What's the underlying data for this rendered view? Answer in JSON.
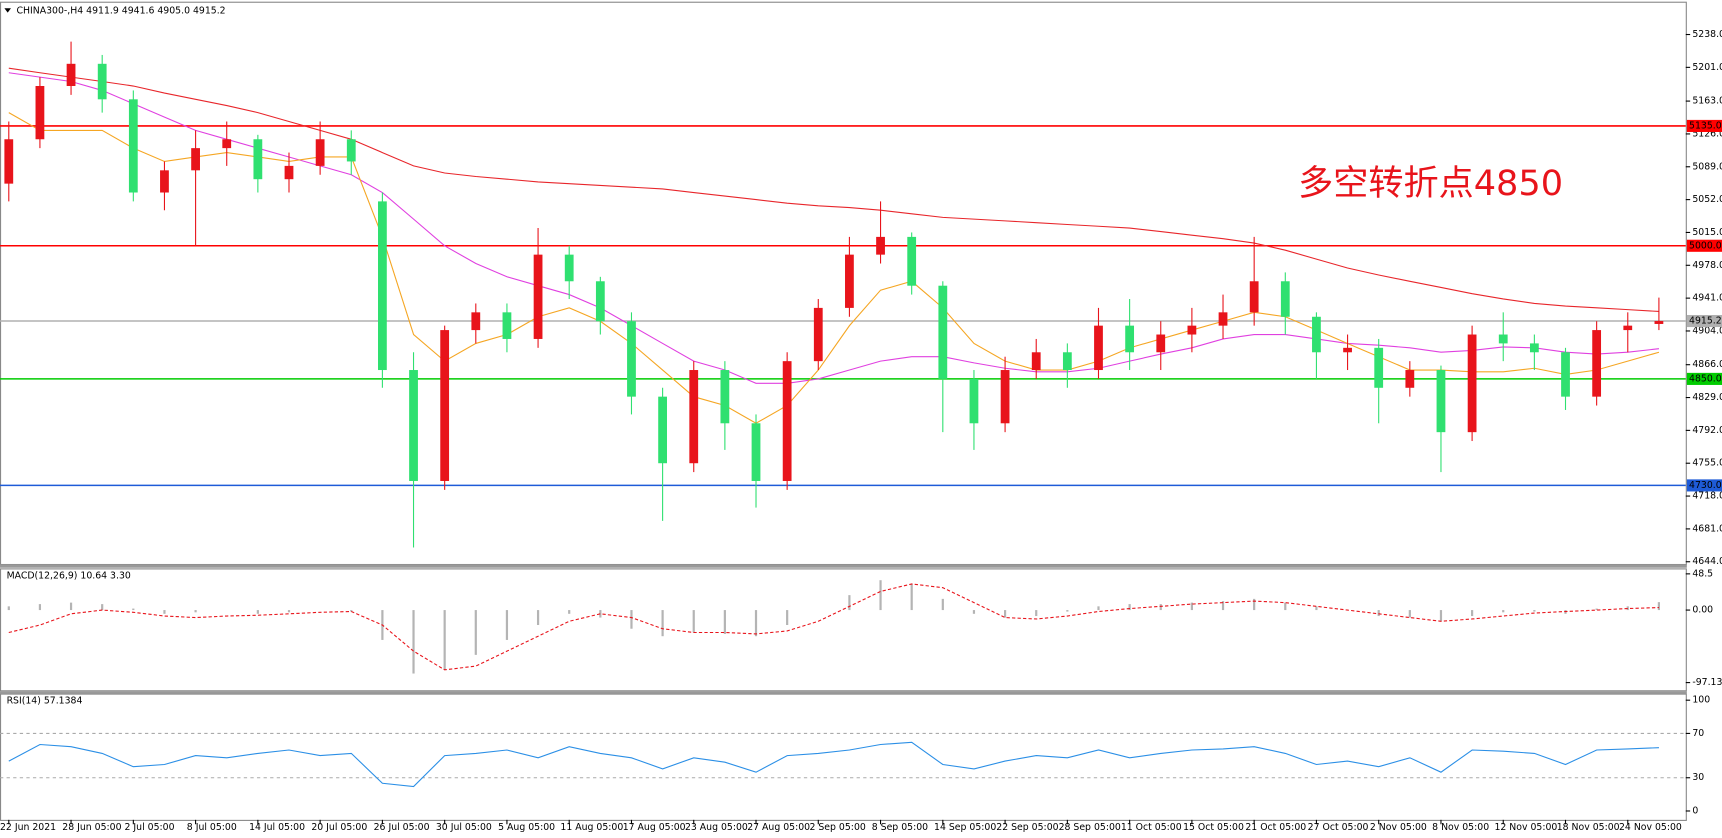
{
  "chart_data": [
    {
      "type": "candlestick",
      "title": "CHINA300-,H4  4911.9 4941.6 4905.0 4915.2",
      "annotation": "多空转折点4850",
      "categories": [
        "22 Jun 2021",
        null,
        "28 Jun 05:00",
        null,
        "2 Jul 05:00",
        null,
        "8 Jul 05:00",
        null,
        "14 Jul 05:00",
        null,
        "20 Jul 05:00",
        null,
        "26 Jul 05:00",
        null,
        "30 Jul 05:00",
        null,
        "5 Aug 05:00",
        null,
        "11 Aug 05:00",
        null,
        "17 Aug 05:00",
        null,
        "23 Aug 05:00",
        null,
        "27 Aug 05:00",
        null,
        "2 Sep 05:00",
        null,
        "8 Sep 05:00",
        null,
        "14 Sep 05:00",
        null,
        "22 Sep 05:00",
        null,
        "28 Sep 05:00",
        null,
        "11 Oct 05:00",
        null,
        "15 Oct 05:00",
        null,
        "21 Oct 05:00",
        null,
        "27 Oct 05:00",
        null,
        "2 Nov 05:00",
        null,
        "8 Nov 05:00",
        null,
        "12 Nov 05:00",
        null,
        "18 Nov 05:00",
        null,
        "24 Nov 05:00",
        null
      ],
      "open": [
        5070,
        5120,
        5180,
        5205,
        5165,
        5060,
        5085,
        5110,
        5120,
        5075,
        5090,
        5120,
        5050,
        4860,
        4735,
        4905,
        4925,
        4895,
        4990,
        4960,
        4915,
        4830,
        4755,
        4860,
        4800,
        4735,
        4870,
        4930,
        4990,
        5010,
        4955,
        4850,
        4800,
        4860,
        4880,
        4860,
        4910,
        4880,
        4900,
        4910,
        4925,
        4960,
        4920,
        4880,
        4885,
        4840,
        4860,
        4790,
        4900,
        4890,
        4880,
        4830,
        4905,
        4911.9
      ],
      "high": [
        5140,
        5190,
        5230,
        5215,
        5175,
        5095,
        5130,
        5140,
        5125,
        5105,
        5140,
        5130,
        5060,
        4880,
        4910,
        4935,
        4935,
        5020,
        5000,
        4965,
        4925,
        4840,
        4870,
        4870,
        4810,
        4880,
        4940,
        5010,
        5050,
        5015,
        4960,
        4860,
        4875,
        4895,
        4890,
        4930,
        4940,
        4915,
        4930,
        4945,
        5010,
        4970,
        4925,
        4900,
        4895,
        4870,
        4865,
        4910,
        4925,
        4900,
        4885,
        4915,
        4925,
        4941.6
      ],
      "low": [
        5050,
        5110,
        5170,
        5150,
        5050,
        5040,
        5000,
        5090,
        5060,
        5060,
        5080,
        5080,
        4840,
        4660,
        4725,
        4890,
        4880,
        4885,
        4940,
        4900,
        4810,
        4690,
        4745,
        4770,
        4705,
        4725,
        4860,
        4920,
        4980,
        4945,
        4790,
        4770,
        4790,
        4850,
        4840,
        4850,
        4860,
        4860,
        4880,
        4895,
        4910,
        4900,
        4850,
        4860,
        4800,
        4830,
        4745,
        4780,
        4870,
        4860,
        4815,
        4820,
        4880,
        4905
      ],
      "close": [
        5120,
        5180,
        5205,
        5165,
        5060,
        5085,
        5110,
        5120,
        5075,
        5090,
        5120,
        5095,
        4860,
        4735,
        4905,
        4925,
        4895,
        4990,
        4960,
        4915,
        4830,
        4755,
        4860,
        4800,
        4735,
        4870,
        4930,
        4990,
        5010,
        4955,
        4850,
        4800,
        4860,
        4880,
        4860,
        4910,
        4880,
        4900,
        4910,
        4925,
        4960,
        4920,
        4880,
        4885,
        4840,
        4860,
        4790,
        4900,
        4890,
        4880,
        4830,
        4905,
        4910,
        4915.2
      ],
      "up_color": "#e8141b",
      "down_color": "#2fe070",
      "lines": [
        {
          "color": "#e8262b",
          "values": [
            5200,
            5195,
            5190,
            5185,
            5180,
            5172,
            5165,
            5158,
            5150,
            5140,
            5130,
            5120,
            5105,
            5090,
            5082,
            5078,
            5075,
            5072,
            5070,
            5068,
            5066,
            5064,
            5060,
            5056,
            5052,
            5048,
            5045,
            5043,
            5040,
            5036,
            5032,
            5030,
            5028,
            5026,
            5024,
            5022,
            5020,
            5016,
            5012,
            5008,
            5003,
            4995,
            4985,
            4975,
            4967,
            4960,
            4953,
            4946,
            4940,
            4935,
            4932,
            4930,
            4928,
            4926
          ]
        },
        {
          "color": "#e040e0",
          "values": [
            5195,
            5190,
            5185,
            5175,
            5160,
            5145,
            5130,
            5120,
            5110,
            5100,
            5090,
            5080,
            5060,
            5030,
            5000,
            4980,
            4965,
            4955,
            4945,
            4930,
            4910,
            4890,
            4870,
            4860,
            4845,
            4845,
            4850,
            4860,
            4870,
            4875,
            4875,
            4868,
            4862,
            4858,
            4858,
            4862,
            4870,
            4878,
            4885,
            4895,
            4900,
            4900,
            4895,
            4890,
            4888,
            4885,
            4880,
            4882,
            4886,
            4885,
            4880,
            4878,
            4880,
            4884
          ]
        },
        {
          "color": "#f5a623",
          "values": [
            5150,
            5130,
            5130,
            5130,
            5110,
            5095,
            5100,
            5105,
            5100,
            5095,
            5100,
            5100,
            5010,
            4900,
            4870,
            4890,
            4900,
            4920,
            4930,
            4915,
            4890,
            4860,
            4830,
            4820,
            4800,
            4820,
            4860,
            4910,
            4950,
            4960,
            4930,
            4890,
            4870,
            4860,
            4860,
            4870,
            4885,
            4895,
            4905,
            4915,
            4925,
            4920,
            4905,
            4890,
            4875,
            4860,
            4860,
            4858,
            4858,
            4862,
            4855,
            4860,
            4870,
            4880
          ]
        }
      ],
      "levels": [
        {
          "value": 5135,
          "label": "5135.0",
          "color": "#ff0000"
        },
        {
          "value": 5000,
          "label": "5000.0",
          "color": "#ff0000"
        },
        {
          "value": 4915.2,
          "label": "4915.2",
          "color": "#b0b0b0"
        },
        {
          "value": 4850,
          "label": "4850.0",
          "color": "#00cc00"
        },
        {
          "value": 4730,
          "label": "4730.0",
          "color": "#1e5bd8"
        }
      ],
      "ylim": [
        4641.5,
        5275
      ],
      "yticks": [
        {
          "value": 5238,
          "label": "5238.0"
        },
        {
          "value": 5201,
          "label": "5201.0"
        },
        {
          "value": 5163,
          "label": "5163.0"
        },
        {
          "value": 5126,
          "label": "5126.0"
        },
        {
          "value": 5089,
          "label": "5089.0"
        },
        {
          "value": 5052,
          "label": "5052.0"
        },
        {
          "value": 5015,
          "label": "5015.0"
        },
        {
          "value": 4978,
          "label": "4978.0"
        },
        {
          "value": 4941,
          "label": "4941.0"
        },
        {
          "value": 4904,
          "label": "4904.0"
        },
        {
          "value": 4866,
          "label": "4866.0"
        },
        {
          "value": 4829,
          "label": "4829.0"
        },
        {
          "value": 4792,
          "label": "4792.0"
        },
        {
          "value": 4755,
          "label": "4755.0"
        },
        {
          "value": 4718,
          "label": "4718.0"
        },
        {
          "value": 4681,
          "label": "4681.0"
        },
        {
          "value": 4644,
          "label": "4644.0"
        }
      ]
    },
    {
      "type": "macd",
      "title": "MACD(12,26,9) 10.64 3.30",
      "histogram": {
        "color": "#b4b4b4",
        "values": [
          5,
          8,
          10,
          8,
          2,
          -5,
          -3,
          0,
          -5,
          -3,
          0,
          -2,
          -40,
          -85,
          -80,
          -60,
          -40,
          -20,
          -5,
          -10,
          -25,
          -35,
          -30,
          -32,
          -35,
          -20,
          0,
          20,
          40,
          35,
          15,
          -5,
          -10,
          -8,
          -2,
          5,
          8,
          8,
          10,
          12,
          15,
          10,
          5,
          0,
          -8,
          -10,
          -15,
          -8,
          -3,
          -2,
          -5,
          2,
          5,
          10.64
        ]
      },
      "signal": {
        "color": "#e8141b",
        "values": [
          -30,
          -20,
          -5,
          0,
          -3,
          -8,
          -10,
          -8,
          -7,
          -5,
          -3,
          -2,
          -20,
          -55,
          -80,
          -75,
          -55,
          -35,
          -15,
          -5,
          -10,
          -25,
          -30,
          -30,
          -32,
          -28,
          -15,
          5,
          25,
          35,
          30,
          10,
          -10,
          -12,
          -8,
          -2,
          2,
          5,
          8,
          10,
          12,
          10,
          5,
          0,
          -5,
          -10,
          -15,
          -12,
          -8,
          -4,
          -2,
          0,
          2,
          3.3
        ]
      },
      "ylim": [
        -107.4,
        54.4
      ],
      "yticks": [
        48.5,
        {
          "value": 0,
          "label": "0.00"
        },
        -97.13
      ]
    },
    {
      "type": "rsi",
      "title": "RSI(14) 57.1384",
      "color": "#2b8fe6",
      "values": [
        45,
        60,
        58,
        52,
        40,
        42,
        50,
        48,
        52,
        55,
        50,
        52,
        25,
        22,
        50,
        52,
        55,
        48,
        58,
        52,
        48,
        38,
        48,
        44,
        35,
        50,
        52,
        55,
        60,
        62,
        42,
        38,
        45,
        50,
        48,
        55,
        48,
        52,
        55,
        56,
        58,
        52,
        42,
        45,
        40,
        48,
        35,
        55,
        54,
        52,
        42,
        55,
        56,
        57.1384
      ],
      "levels": [
        70,
        30
      ],
      "ylim": [
        -8,
        105
      ],
      "yticks": [
        100,
        70,
        30,
        0
      ]
    }
  ]
}
